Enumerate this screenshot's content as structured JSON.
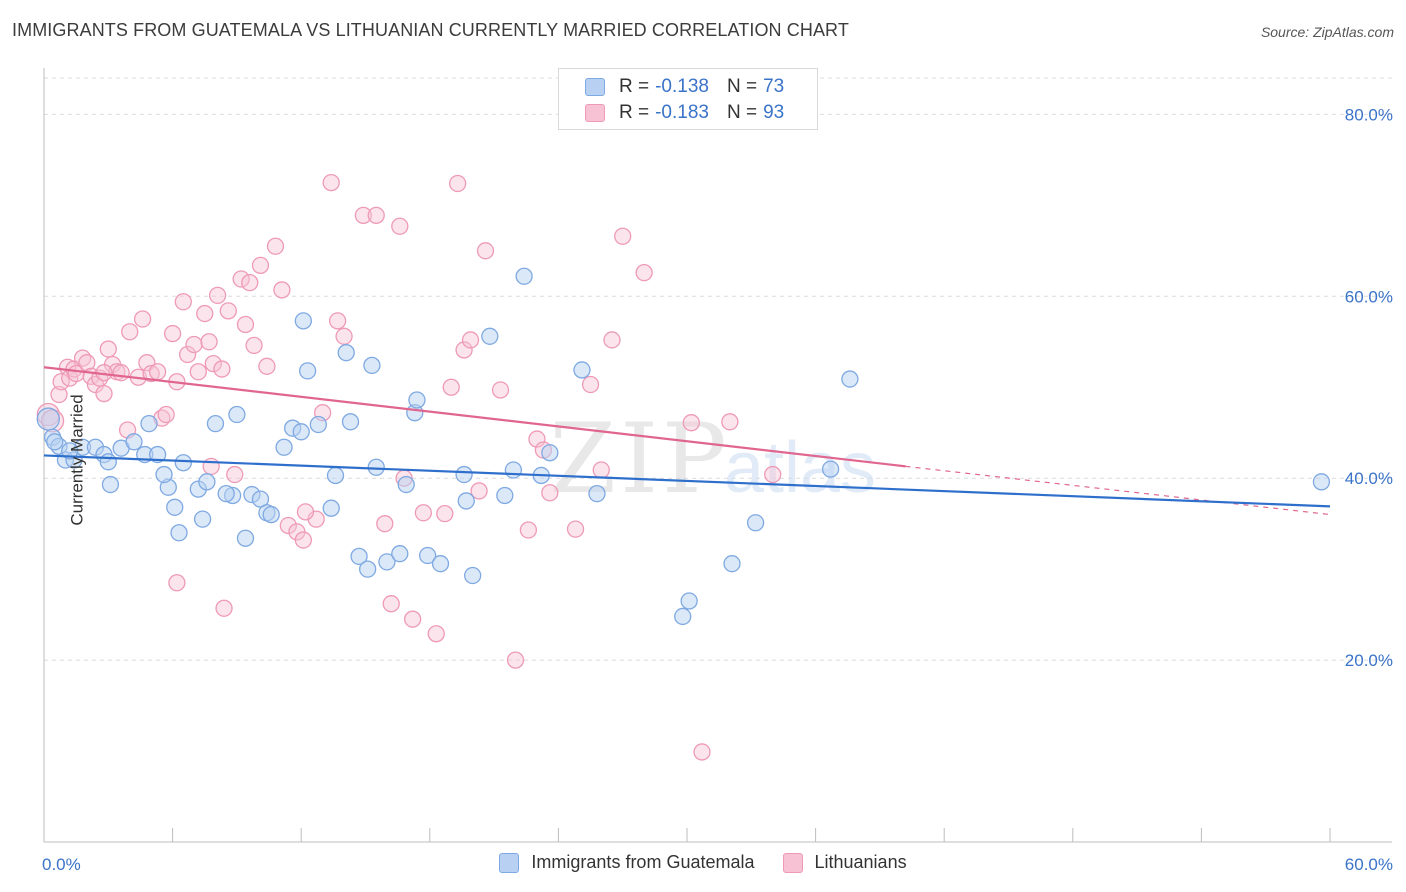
{
  "header": {
    "title": "IMMIGRANTS FROM GUATEMALA VS LITHUANIAN CURRENTLY MARRIED CORRELATION CHART",
    "source": "Source: ZipAtlas.com"
  },
  "legend_top": {
    "rows": [
      {
        "r_label": "R =",
        "r_value": "-0.138",
        "n_label": "N =",
        "n_value": "73"
      },
      {
        "r_label": "R =",
        "r_value": "-0.183",
        "n_label": "N =",
        "n_value": "93"
      }
    ]
  },
  "watermark": {
    "zip": "ZIP",
    "atlas": "atlas"
  },
  "colors": {
    "blue_fill": "#b8d1f2",
    "blue_stroke": "#7fa9e2",
    "blue_line": "#2f6fcc",
    "pink_fill": "#f7c3d4",
    "pink_stroke": "#ee9ab6",
    "pink_line": "#e0668f",
    "tick_label": "#3a73c8",
    "grid": "#dcdcdc"
  },
  "chart_data": {
    "type": "scatter",
    "ylabel": "Currently Married",
    "xlim": [
      0,
      60
    ],
    "ylim": [
      0,
      84
    ],
    "x_ticks": [
      {
        "value": 0,
        "label": "0.0%"
      },
      {
        "value": 60,
        "label": "60.0%"
      }
    ],
    "y_ticks": [
      {
        "value": 20,
        "label": "20.0%"
      },
      {
        "value": 40,
        "label": "40.0%"
      },
      {
        "value": 60,
        "label": "60.0%"
      },
      {
        "value": 80,
        "label": "80.0%"
      }
    ],
    "x_minor_ticks": [
      6,
      12,
      18,
      24,
      30,
      36,
      42,
      48,
      54,
      60
    ],
    "grid": true,
    "legend_position": "bottom",
    "series": [
      {
        "name": "Immigrants from Guatemala",
        "color": "blue",
        "R": -0.138,
        "N": 73,
        "trend": {
          "x0": 0,
          "y0": 42.5,
          "x1": 60,
          "y1": 36.9
        },
        "points": [
          [
            0.2,
            46.5
          ],
          [
            0.4,
            44.5
          ],
          [
            0.7,
            43.5
          ],
          [
            1.0,
            42.0
          ],
          [
            1.4,
            42.0
          ],
          [
            1.8,
            43.4
          ],
          [
            2.4,
            43.4
          ],
          [
            2.8,
            42.6
          ],
          [
            3.1,
            39.3
          ],
          [
            3.6,
            43.3
          ],
          [
            4.2,
            44.0
          ],
          [
            4.7,
            42.6
          ],
          [
            5.3,
            42.6
          ],
          [
            4.9,
            46.0
          ],
          [
            5.8,
            39.0
          ],
          [
            6.1,
            36.8
          ],
          [
            6.5,
            41.7
          ],
          [
            7.2,
            38.8
          ],
          [
            7.6,
            39.6
          ],
          [
            7.4,
            35.5
          ],
          [
            8.0,
            46.0
          ],
          [
            8.8,
            38.1
          ],
          [
            8.5,
            38.3
          ],
          [
            9.0,
            47.0
          ],
          [
            9.4,
            33.4
          ],
          [
            9.7,
            38.2
          ],
          [
            10.1,
            37.7
          ],
          [
            10.4,
            36.2
          ],
          [
            10.6,
            36.0
          ],
          [
            11.2,
            43.4
          ],
          [
            11.6,
            45.5
          ],
          [
            12.0,
            45.1
          ],
          [
            12.3,
            51.8
          ],
          [
            12.1,
            57.3
          ],
          [
            12.8,
            45.9
          ],
          [
            13.4,
            36.7
          ],
          [
            13.6,
            40.3
          ],
          [
            14.3,
            46.2
          ],
          [
            14.1,
            53.8
          ],
          [
            14.7,
            31.4
          ],
          [
            15.1,
            30.0
          ],
          [
            15.3,
            52.4
          ],
          [
            15.5,
            41.2
          ],
          [
            16.0,
            30.8
          ],
          [
            16.6,
            31.7
          ],
          [
            16.9,
            39.3
          ],
          [
            17.3,
            47.2
          ],
          [
            17.4,
            48.6
          ],
          [
            17.9,
            31.5
          ],
          [
            18.5,
            30.6
          ],
          [
            19.6,
            40.4
          ],
          [
            19.7,
            37.5
          ],
          [
            20.0,
            29.3
          ],
          [
            20.8,
            55.6
          ],
          [
            21.5,
            38.1
          ],
          [
            21.9,
            40.9
          ],
          [
            22.4,
            62.2
          ],
          [
            23.2,
            40.3
          ],
          [
            23.6,
            42.8
          ],
          [
            25.1,
            51.9
          ],
          [
            25.8,
            38.3
          ],
          [
            29.8,
            24.8
          ],
          [
            30.1,
            26.5
          ],
          [
            32.1,
            30.6
          ],
          [
            33.2,
            35.1
          ],
          [
            36.7,
            41.0
          ],
          [
            37.6,
            50.9
          ],
          [
            59.6,
            39.6
          ],
          [
            6.3,
            34.0
          ],
          [
            0.5,
            44.0
          ],
          [
            1.2,
            43.0
          ],
          [
            3.0,
            41.8
          ],
          [
            5.6,
            40.4
          ]
        ]
      },
      {
        "name": "Lithuanians",
        "color": "pink",
        "R": -0.183,
        "N": 93,
        "trend": {
          "x0": 0,
          "y0": 52.2,
          "x1": 40.2,
          "y1": 41.3
        },
        "trend_dashed": {
          "x0": 40.2,
          "y0": 41.3,
          "x1": 60,
          "y1": 36.0
        },
        "points": [
          [
            0.2,
            47.0
          ],
          [
            0.4,
            46.3
          ],
          [
            0.7,
            49.2
          ],
          [
            0.8,
            50.6
          ],
          [
            1.1,
            52.2
          ],
          [
            1.2,
            51.0
          ],
          [
            1.4,
            52.0
          ],
          [
            1.5,
            51.5
          ],
          [
            1.8,
            53.2
          ],
          [
            2.0,
            52.7
          ],
          [
            2.2,
            51.2
          ],
          [
            2.4,
            50.3
          ],
          [
            2.6,
            51.0
          ],
          [
            2.8,
            49.3
          ],
          [
            3.0,
            54.2
          ],
          [
            3.2,
            52.5
          ],
          [
            3.4,
            51.7
          ],
          [
            3.6,
            51.6
          ],
          [
            3.9,
            45.3
          ],
          [
            4.0,
            56.1
          ],
          [
            4.4,
            51.1
          ],
          [
            4.6,
            57.5
          ],
          [
            4.8,
            52.7
          ],
          [
            5.0,
            51.5
          ],
          [
            5.3,
            51.7
          ],
          [
            5.5,
            46.6
          ],
          [
            5.7,
            47.0
          ],
          [
            6.0,
            55.9
          ],
          [
            6.2,
            50.6
          ],
          [
            6.5,
            59.4
          ],
          [
            6.7,
            53.6
          ],
          [
            7.0,
            54.7
          ],
          [
            7.2,
            51.7
          ],
          [
            7.5,
            58.1
          ],
          [
            7.7,
            55.0
          ],
          [
            7.9,
            52.6
          ],
          [
            8.1,
            60.1
          ],
          [
            8.3,
            52.0
          ],
          [
            8.6,
            58.4
          ],
          [
            8.9,
            40.4
          ],
          [
            9.2,
            61.9
          ],
          [
            9.4,
            56.9
          ],
          [
            9.6,
            61.5
          ],
          [
            9.8,
            54.6
          ],
          [
            10.1,
            63.4
          ],
          [
            10.4,
            52.3
          ],
          [
            10.8,
            65.5
          ],
          [
            11.1,
            60.7
          ],
          [
            11.4,
            34.8
          ],
          [
            11.8,
            34.1
          ],
          [
            12.1,
            33.2
          ],
          [
            12.7,
            35.5
          ],
          [
            13.0,
            47.2
          ],
          [
            13.4,
            72.5
          ],
          [
            13.7,
            57.3
          ],
          [
            14.0,
            55.6
          ],
          [
            14.9,
            68.9
          ],
          [
            15.5,
            68.9
          ],
          [
            15.9,
            35.0
          ],
          [
            16.2,
            26.2
          ],
          [
            16.6,
            67.7
          ],
          [
            16.8,
            40.0
          ],
          [
            17.2,
            24.5
          ],
          [
            17.7,
            36.2
          ],
          [
            18.3,
            22.9
          ],
          [
            18.7,
            36.1
          ],
          [
            19.0,
            50.0
          ],
          [
            19.3,
            72.4
          ],
          [
            19.6,
            54.1
          ],
          [
            19.9,
            55.2
          ],
          [
            20.3,
            38.6
          ],
          [
            20.6,
            65.0
          ],
          [
            21.3,
            49.7
          ],
          [
            22.0,
            20.0
          ],
          [
            22.6,
            34.3
          ],
          [
            23.0,
            44.3
          ],
          [
            23.3,
            43.1
          ],
          [
            23.6,
            38.4
          ],
          [
            24.8,
            34.4
          ],
          [
            25.5,
            50.3
          ],
          [
            26.0,
            40.9
          ],
          [
            26.5,
            55.2
          ],
          [
            27.0,
            66.6
          ],
          [
            28.0,
            62.6
          ],
          [
            30.2,
            46.1
          ],
          [
            30.7,
            9.9
          ],
          [
            32.0,
            46.2
          ],
          [
            34.0,
            40.4
          ],
          [
            6.2,
            28.5
          ],
          [
            7.8,
            41.3
          ],
          [
            8.4,
            25.7
          ],
          [
            12.2,
            36.3
          ],
          [
            2.8,
            51.6
          ]
        ]
      }
    ]
  },
  "legend_bottom": {
    "items": [
      {
        "label": "Immigrants from Guatemala"
      },
      {
        "label": "Lithuanians"
      }
    ]
  }
}
